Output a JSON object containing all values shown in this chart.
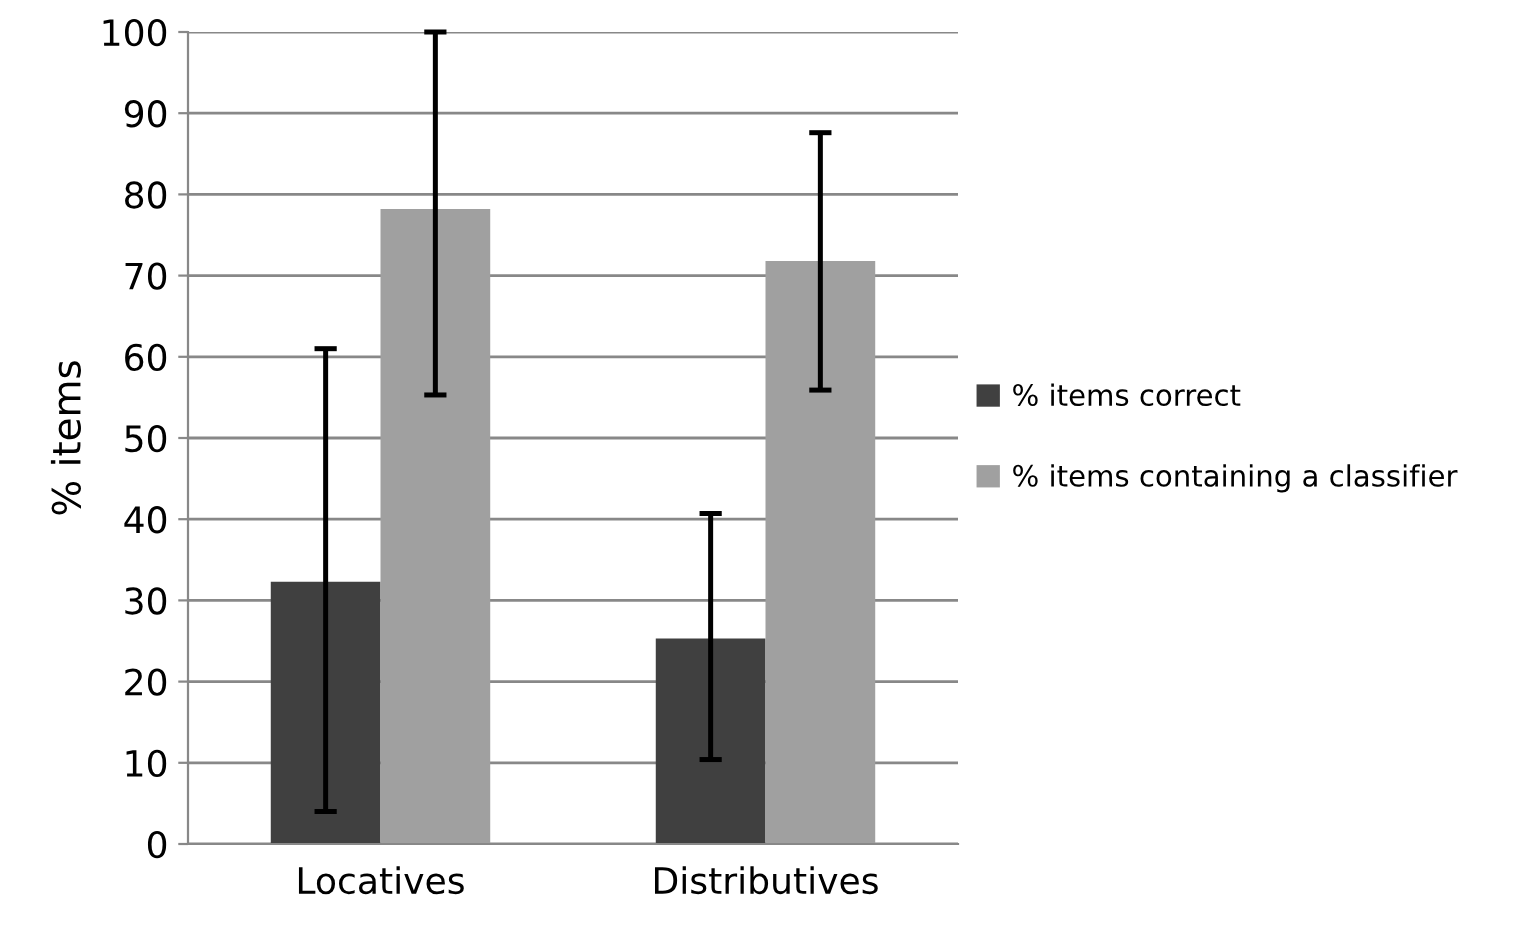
{
  "chart_data": {
    "type": "bar",
    "ylabel": "% items",
    "categories": [
      "Locatives",
      "Distributives"
    ],
    "series": [
      {
        "name": "% items correct",
        "color": "#404040",
        "values": [
          32.3,
          25.3
        ],
        "errors": [
          [
            4,
            61
          ],
          [
            10.4,
            40.7
          ]
        ]
      },
      {
        "name": "% items containing a classifier",
        "color": "#a0a0a0",
        "values": [
          78.2,
          71.8
        ],
        "errors": [
          [
            55.3,
            100
          ],
          [
            55.9,
            87.6
          ]
        ]
      }
    ],
    "ylim": [
      0,
      100
    ],
    "yticks": [
      0,
      10,
      20,
      30,
      40,
      50,
      60,
      70,
      80,
      90,
      100
    ],
    "grid": "y",
    "legend": "right"
  }
}
